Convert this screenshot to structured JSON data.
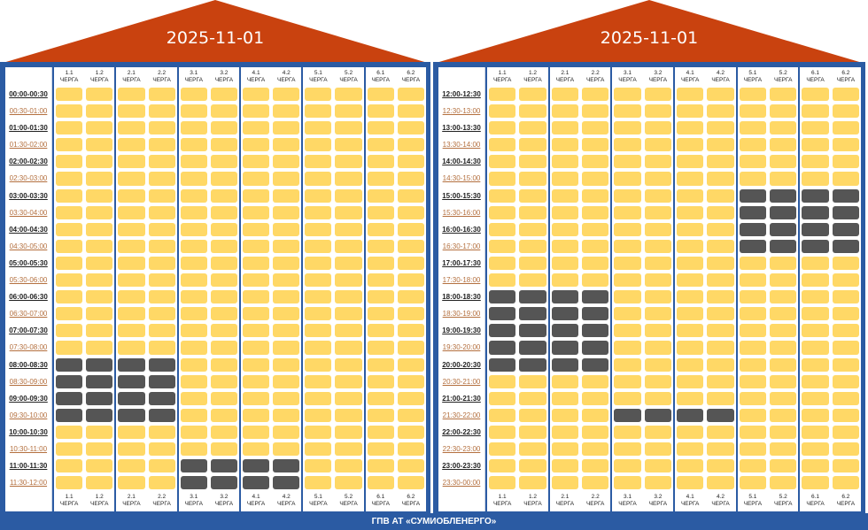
{
  "colors": {
    "roof": "#c9420f",
    "frame": "#2b5ba3",
    "on": "#ffd866",
    "off": "#555555"
  },
  "queues": [
    "1.1",
    "1.2",
    "2.1",
    "2.2",
    "3.1",
    "3.2",
    "4.1",
    "4.2",
    "5.1",
    "5.2",
    "6.1",
    "6.2"
  ],
  "queue_suffix": "ЧЕРГА",
  "footer": "ГПВ АТ «СУМИОБЛЕНЕРГО»",
  "panels": [
    {
      "date": "2025-11-01",
      "rows": [
        {
          "time": "00:00-00:30",
          "off": []
        },
        {
          "time": "00:30-01:00",
          "off": []
        },
        {
          "time": "01:00-01:30",
          "off": []
        },
        {
          "time": "01:30-02:00",
          "off": []
        },
        {
          "time": "02:00-02:30",
          "off": []
        },
        {
          "time": "02:30-03:00",
          "off": []
        },
        {
          "time": "03:00-03:30",
          "off": []
        },
        {
          "time": "03:30-04:00",
          "off": []
        },
        {
          "time": "04:00-04:30",
          "off": []
        },
        {
          "time": "04:30-05:00",
          "off": []
        },
        {
          "time": "05:00-05:30",
          "off": []
        },
        {
          "time": "05:30-06:00",
          "off": []
        },
        {
          "time": "06:00-06:30",
          "off": []
        },
        {
          "time": "06:30-07:00",
          "off": []
        },
        {
          "time": "07:00-07:30",
          "off": []
        },
        {
          "time": "07:30-08:00",
          "off": []
        },
        {
          "time": "08:00-08:30",
          "off": [
            "1.1",
            "1.2",
            "2.1",
            "2.2"
          ]
        },
        {
          "time": "08:30-09:00",
          "off": [
            "1.1",
            "1.2",
            "2.1",
            "2.2"
          ]
        },
        {
          "time": "09:00-09:30",
          "off": [
            "1.1",
            "1.2",
            "2.1",
            "2.2"
          ]
        },
        {
          "time": "09:30-10:00",
          "off": [
            "1.1",
            "1.2",
            "2.1",
            "2.2"
          ]
        },
        {
          "time": "10:00-10:30",
          "off": []
        },
        {
          "time": "10:30-11:00",
          "off": []
        },
        {
          "time": "11:00-11:30",
          "off": [
            "3.1",
            "3.2",
            "4.1",
            "4.2"
          ]
        },
        {
          "time": "11:30-12:00",
          "off": [
            "3.1",
            "3.2",
            "4.1",
            "4.2"
          ]
        }
      ]
    },
    {
      "date": "2025-11-01",
      "rows": [
        {
          "time": "12:00-12:30",
          "off": []
        },
        {
          "time": "12:30-13:00",
          "off": []
        },
        {
          "time": "13:00-13:30",
          "off": []
        },
        {
          "time": "13:30-14:00",
          "off": []
        },
        {
          "time": "14:00-14:30",
          "off": []
        },
        {
          "time": "14:30-15:00",
          "off": []
        },
        {
          "time": "15:00-15:30",
          "off": [
            "5.1",
            "5.2",
            "6.1",
            "6.2"
          ]
        },
        {
          "time": "15:30-16:00",
          "off": [
            "5.1",
            "5.2",
            "6.1",
            "6.2"
          ]
        },
        {
          "time": "16:00-16:30",
          "off": [
            "5.1",
            "5.2",
            "6.1",
            "6.2"
          ]
        },
        {
          "time": "16:30-17:00",
          "off": [
            "5.1",
            "5.2",
            "6.1",
            "6.2"
          ]
        },
        {
          "time": "17:00-17:30",
          "off": []
        },
        {
          "time": "17:30-18:00",
          "off": []
        },
        {
          "time": "18:00-18:30",
          "off": [
            "1.1",
            "1.2",
            "2.1",
            "2.2"
          ]
        },
        {
          "time": "18:30-19:00",
          "off": [
            "1.1",
            "1.2",
            "2.1",
            "2.2"
          ]
        },
        {
          "time": "19:00-19:30",
          "off": [
            "1.1",
            "1.2",
            "2.1",
            "2.2"
          ]
        },
        {
          "time": "19:30-20:00",
          "off": [
            "1.1",
            "1.2",
            "2.1",
            "2.2"
          ]
        },
        {
          "time": "20:00-20:30",
          "off": [
            "1.1",
            "1.2",
            "2.1",
            "2.2"
          ]
        },
        {
          "time": "20:30-21:00",
          "off": []
        },
        {
          "time": "21:00-21:30",
          "off": []
        },
        {
          "time": "21:30-22:00",
          "off": [
            "3.1",
            "3.2",
            "4.1",
            "4.2"
          ]
        },
        {
          "time": "22:00-22:30",
          "off": []
        },
        {
          "time": "22:30-23:00",
          "off": []
        },
        {
          "time": "23:00-23:30",
          "off": []
        },
        {
          "time": "23:30-00:00",
          "off": []
        }
      ]
    }
  ]
}
